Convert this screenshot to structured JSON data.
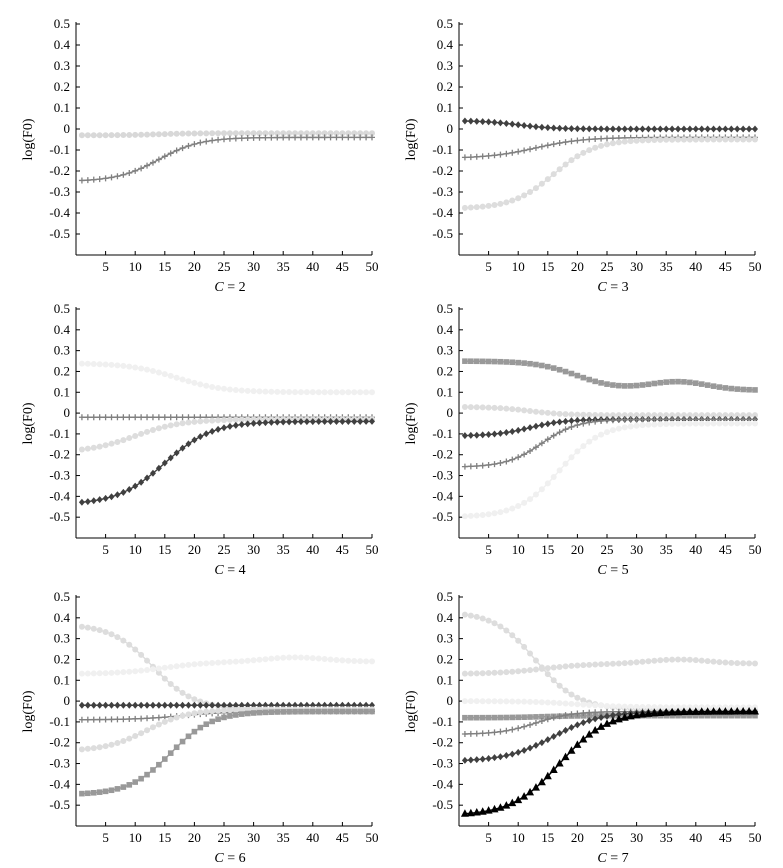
{
  "chart_data": [
    {
      "type": "line",
      "caption_var": "C",
      "caption_eq": " = ",
      "caption_val": "2",
      "ylabel": "log(F0)",
      "xlabel": "",
      "xlim": [
        0,
        50
      ],
      "ylim": [
        -0.6,
        0.5
      ],
      "xticks": [
        5,
        10,
        15,
        20,
        25,
        30,
        35,
        40,
        45,
        50
      ],
      "yticks": [
        -0.5,
        -0.4,
        -0.3,
        -0.2,
        -0.1,
        0,
        0.1,
        0.2,
        0.3,
        0.4,
        0.5
      ],
      "series": [
        {
          "color": "#d8d8d8",
          "marker": "circle",
          "start": -0.03,
          "end": -0.02,
          "mid": 14,
          "width": 3
        },
        {
          "color": "#808080",
          "marker": "plus",
          "start": -0.25,
          "end": -0.04,
          "mid": 14,
          "width": 3.5
        }
      ]
    },
    {
      "type": "line",
      "caption_var": "C",
      "caption_eq": " = ",
      "caption_val": "3",
      "ylabel": "log(F0)",
      "xlabel": "",
      "xlim": [
        0,
        50
      ],
      "ylim": [
        -0.6,
        0.5
      ],
      "xticks": [
        5,
        10,
        15,
        20,
        25,
        30,
        35,
        40,
        45,
        50
      ],
      "yticks": [
        -0.5,
        -0.4,
        -0.3,
        -0.2,
        -0.1,
        0,
        0.1,
        0.2,
        0.3,
        0.4,
        0.5
      ],
      "series": [
        {
          "color": "#404040",
          "marker": "diamond",
          "start": 0.04,
          "end": 0.0,
          "mid": 10,
          "width": 3
        },
        {
          "color": "#808080",
          "marker": "plus",
          "start": -0.14,
          "end": -0.04,
          "mid": 13,
          "width": 4
        },
        {
          "color": "#dddddd",
          "marker": "circle",
          "start": -0.38,
          "end": -0.05,
          "mid": 16,
          "width": 3.5
        }
      ]
    },
    {
      "type": "line",
      "caption_var": "C",
      "caption_eq": " = ",
      "caption_val": "4",
      "ylabel": "log(F0)",
      "xlabel": "",
      "xlim": [
        0,
        50
      ],
      "ylim": [
        -0.6,
        0.5
      ],
      "xticks": [
        5,
        10,
        15,
        20,
        25,
        30,
        35,
        40,
        45,
        50
      ],
      "yticks": [
        -0.5,
        -0.4,
        -0.3,
        -0.2,
        -0.1,
        0,
        0.1,
        0.2,
        0.3,
        0.4,
        0.5
      ],
      "series": [
        {
          "color": "#f0f0f0",
          "marker": "circle",
          "start": 0.24,
          "end": 0.1,
          "mid": 17,
          "width": 4
        },
        {
          "color": "#808080",
          "marker": "plus",
          "start": -0.02,
          "end": -0.02,
          "mid": 14,
          "width": 3
        },
        {
          "color": "#dddddd",
          "marker": "circle",
          "start": -0.19,
          "end": -0.03,
          "mid": 10,
          "width": 4
        },
        {
          "color": "#404040",
          "marker": "diamond",
          "start": -0.44,
          "end": -0.04,
          "mid": 15,
          "width": 4
        }
      ]
    },
    {
      "type": "line",
      "caption_var": "C",
      "caption_eq": " = ",
      "caption_val": "5",
      "ylabel": "log(F0)",
      "xlabel": "",
      "xlim": [
        0,
        50
      ],
      "ylim": [
        -0.6,
        0.5
      ],
      "xticks": [
        5,
        10,
        15,
        20,
        25,
        30,
        35,
        40,
        45,
        50
      ],
      "yticks": [
        -0.5,
        -0.4,
        -0.3,
        -0.2,
        -0.1,
        0,
        0.1,
        0.2,
        0.3,
        0.4,
        0.5
      ],
      "series": [
        {
          "color": "#999999",
          "marker": "square",
          "start": 0.25,
          "end": 0.11,
          "mid": 20,
          "width": 3.5,
          "bump": 0.04
        },
        {
          "color": "#dddddd",
          "marker": "circle",
          "start": 0.03,
          "end": -0.01,
          "mid": 12,
          "width": 3
        },
        {
          "color": "#404040",
          "marker": "diamond",
          "start": -0.11,
          "end": -0.03,
          "mid": 12,
          "width": 3
        },
        {
          "color": "#808080",
          "marker": "plus",
          "start": -0.26,
          "end": -0.03,
          "mid": 14,
          "width": 3
        },
        {
          "color": "#f0f0f0",
          "marker": "circle",
          "start": -0.5,
          "end": -0.05,
          "mid": 17,
          "width": 3.5
        }
      ]
    },
    {
      "type": "line",
      "caption_var": "C",
      "caption_eq": " = ",
      "caption_val": "6",
      "ylabel": "log(F0)",
      "xlabel": "",
      "xlim": [
        0,
        50
      ],
      "ylim": [
        -0.6,
        0.5
      ],
      "xticks": [
        5,
        10,
        15,
        20,
        25,
        30,
        35,
        40,
        45,
        50
      ],
      "yticks": [
        -0.5,
        -0.4,
        -0.3,
        -0.2,
        -0.1,
        0,
        0.1,
        0.2,
        0.3,
        0.4,
        0.5
      ],
      "series": [
        {
          "color": "#dddddd",
          "marker": "circle",
          "start": 0.37,
          "end": -0.04,
          "mid": 13,
          "width": 3.5
        },
        {
          "color": "#f0f0f0",
          "marker": "circle",
          "start": 0.13,
          "end": 0.19,
          "mid": 15,
          "width": 4,
          "bump": 0.02
        },
        {
          "color": "#404040",
          "marker": "diamond",
          "start": -0.02,
          "end": -0.02,
          "mid": 14,
          "width": 3
        },
        {
          "color": "#808080",
          "marker": "plus",
          "start": -0.09,
          "end": -0.05,
          "mid": 18,
          "width": 4
        },
        {
          "color": "#dddddd",
          "marker": "circle",
          "start": -0.24,
          "end": -0.04,
          "mid": 12,
          "width": 3.5
        },
        {
          "color": "#999999",
          "marker": "square",
          "start": -0.45,
          "end": -0.05,
          "mid": 16,
          "width": 3.5
        }
      ]
    },
    {
      "type": "line",
      "caption_var": "C",
      "caption_eq": " = ",
      "caption_val": "7",
      "ylabel": "log(F0)",
      "xlabel": "",
      "xlim": [
        0,
        50
      ],
      "ylim": [
        -0.6,
        0.5
      ],
      "xticks": [
        5,
        10,
        15,
        20,
        25,
        30,
        35,
        40,
        45,
        50
      ],
      "yticks": [
        -0.5,
        -0.4,
        -0.3,
        -0.2,
        -0.1,
        0,
        0.1,
        0.2,
        0.3,
        0.4,
        0.5
      ],
      "series": [
        {
          "color": "#dddddd",
          "marker": "circle",
          "start": 0.43,
          "end": -0.04,
          "mid": 13,
          "width": 3.5
        },
        {
          "color": "#dddddd",
          "marker": "circle",
          "start": 0.13,
          "end": 0.18,
          "mid": 14,
          "width": 4,
          "bump": 0.02
        },
        {
          "color": "#f0f0f0",
          "marker": "circle",
          "start": 0.0,
          "end": -0.03,
          "mid": 20,
          "width": 4
        },
        {
          "color": "#999999",
          "marker": "square",
          "start": -0.08,
          "end": -0.07,
          "mid": 14,
          "width": 3
        },
        {
          "color": "#808080",
          "marker": "plus",
          "start": -0.16,
          "end": -0.05,
          "mid": 13,
          "width": 3
        },
        {
          "color": "#404040",
          "marker": "diamond",
          "start": -0.29,
          "end": -0.05,
          "mid": 16,
          "width": 4
        },
        {
          "color": "#000000",
          "marker": "triangle",
          "start": -0.55,
          "end": -0.05,
          "mid": 17,
          "width": 4
        }
      ]
    }
  ]
}
